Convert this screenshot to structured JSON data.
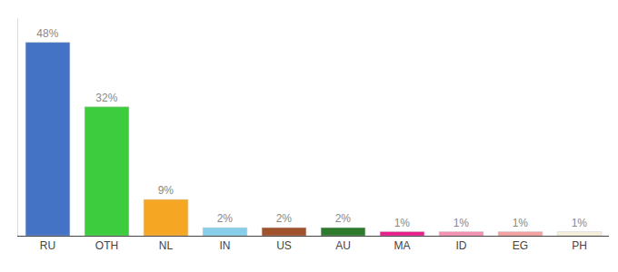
{
  "chart_data": {
    "type": "bar",
    "categories": [
      "RU",
      "OTH",
      "NL",
      "IN",
      "US",
      "AU",
      "MA",
      "ID",
      "EG",
      "PH"
    ],
    "values": [
      48,
      32,
      9,
      2,
      2,
      2,
      1,
      1,
      1,
      1
    ],
    "value_labels": [
      "48%",
      "32%",
      "9%",
      "2%",
      "2%",
      "2%",
      "1%",
      "1%",
      "1%",
      "1%"
    ],
    "colors": [
      "#4472c4",
      "#3dcc3d",
      "#f5a623",
      "#87ceeb",
      "#a0522d",
      "#2d7a2d",
      "#e91e8c",
      "#f48fb1",
      "#f4a0a0",
      "#f5f0dc"
    ],
    "ylim": [
      0,
      54
    ],
    "data_labels": true,
    "tick_labels": "x",
    "grid": false
  }
}
